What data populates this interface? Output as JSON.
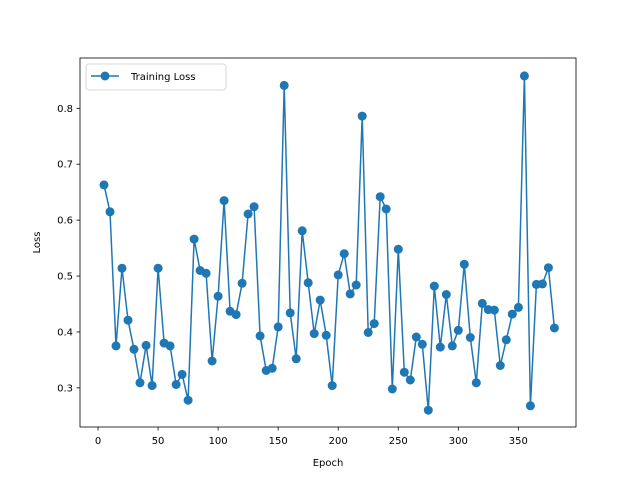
{
  "chart_data": {
    "type": "line",
    "title": "",
    "xlabel": "Epoch",
    "ylabel": "Loss",
    "xlim": [
      -15,
      398
    ],
    "ylim": [
      0.23,
      0.89
    ],
    "xticks": [
      0,
      50,
      100,
      150,
      200,
      250,
      300,
      350
    ],
    "yticks": [
      0.3,
      0.4,
      0.5,
      0.6,
      0.7,
      0.8
    ],
    "ytick_labels": [
      "0.3",
      "0.4",
      "0.5",
      "0.6",
      "0.7",
      "0.8"
    ],
    "grid": false,
    "legend_position": "top-left",
    "series": [
      {
        "name": "Training Loss",
        "color": "#1f77b4",
        "marker": "circle",
        "x": [
          5,
          10,
          15,
          20,
          25,
          30,
          35,
          40,
          45,
          50,
          55,
          60,
          65,
          70,
          75,
          80,
          85,
          90,
          95,
          100,
          105,
          110,
          115,
          120,
          125,
          130,
          135,
          140,
          145,
          150,
          155,
          160,
          165,
          170,
          175,
          180,
          185,
          190,
          195,
          200,
          205,
          210,
          215,
          220,
          225,
          230,
          235,
          240,
          245,
          250,
          255,
          260,
          265,
          270,
          275,
          280,
          285,
          290,
          295,
          300,
          305,
          310,
          315,
          320,
          325,
          330,
          335,
          340,
          345,
          350,
          355,
          360,
          365,
          370,
          375,
          380
        ],
        "y": [
          0.663,
          0.615,
          0.375,
          0.514,
          0.421,
          0.369,
          0.309,
          0.376,
          0.304,
          0.514,
          0.38,
          0.375,
          0.306,
          0.324,
          0.278,
          0.566,
          0.51,
          0.505,
          0.348,
          0.464,
          0.635,
          0.437,
          0.431,
          0.487,
          0.611,
          0.624,
          0.393,
          0.331,
          0.335,
          0.409,
          0.841,
          0.434,
          0.352,
          0.581,
          0.488,
          0.397,
          0.457,
          0.394,
          0.304,
          0.502,
          0.54,
          0.468,
          0.484,
          0.786,
          0.399,
          0.415,
          0.642,
          0.62,
          0.298,
          0.548,
          0.328,
          0.314,
          0.391,
          0.378,
          0.26,
          0.482,
          0.373,
          0.467,
          0.375,
          0.403,
          0.521,
          0.39,
          0.309,
          0.451,
          0.44,
          0.439,
          0.34,
          0.386,
          0.432,
          0.444,
          0.858,
          0.268,
          0.485,
          0.486,
          0.515,
          0.407
        ]
      }
    ]
  }
}
